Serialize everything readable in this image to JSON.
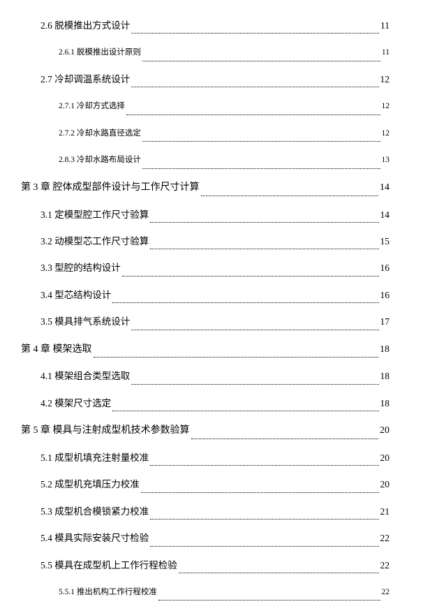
{
  "entries": [
    {
      "level": 2,
      "label": "2.6 脱模推出方式设计",
      "page": "11"
    },
    {
      "level": 3,
      "label": "2.6.1 脱模推出设计原则",
      "page": "11"
    },
    {
      "level": 2,
      "label": "2.7 冷却调温系统设计",
      "page": "12"
    },
    {
      "level": 3,
      "label": "2.7.1 冷却方式选择",
      "page": "12"
    },
    {
      "level": 3,
      "label": "2.7.2 冷却水路直径选定",
      "page": "12"
    },
    {
      "level": 3,
      "label": "2.8.3 冷却水路布局设计",
      "page": "13"
    },
    {
      "level": 1,
      "label": "第 3 章  腔体成型部件设计与工作尺寸计算",
      "page": "14"
    },
    {
      "level": 2,
      "label": "3.1 定模型腔工作尺寸验算",
      "page": "14"
    },
    {
      "level": 2,
      "label": "3.2 动模型芯工作尺寸验算",
      "page": "15"
    },
    {
      "level": 2,
      "label": "3.3 型腔的结构设计",
      "page": "16"
    },
    {
      "level": 2,
      "label": "3.4 型芯结构设计",
      "page": "16"
    },
    {
      "level": 2,
      "label": "3.5 模具排气系统设计",
      "page": "17"
    },
    {
      "level": 1,
      "label": "第 4 章  模架选取",
      "page": "18"
    },
    {
      "level": 2,
      "label": "4.1 模架组合类型选取",
      "page": "18"
    },
    {
      "level": 2,
      "label": "4.2 模架尺寸选定",
      "page": "18"
    },
    {
      "level": 1,
      "label": "第 5 章  模具与注射成型机技术参数验算",
      "page": "20"
    },
    {
      "level": 2,
      "label": "5.1 成型机填充注射量校准",
      "page": "20"
    },
    {
      "level": 2,
      "label": "5.2 成型机充填压力校准",
      "page": "20"
    },
    {
      "level": 2,
      "label": "5.3  成型机合模锁紧力校准",
      "page": "21"
    },
    {
      "level": 2,
      "label": "5.4 模具实际安装尺寸检验",
      "page": "22"
    },
    {
      "level": 2,
      "label": "5.5 模具在成型机上工作行程检验",
      "page": "22"
    },
    {
      "level": 3,
      "label": "5.5.1 推出机构工作行程校准",
      "page": "22"
    }
  ]
}
